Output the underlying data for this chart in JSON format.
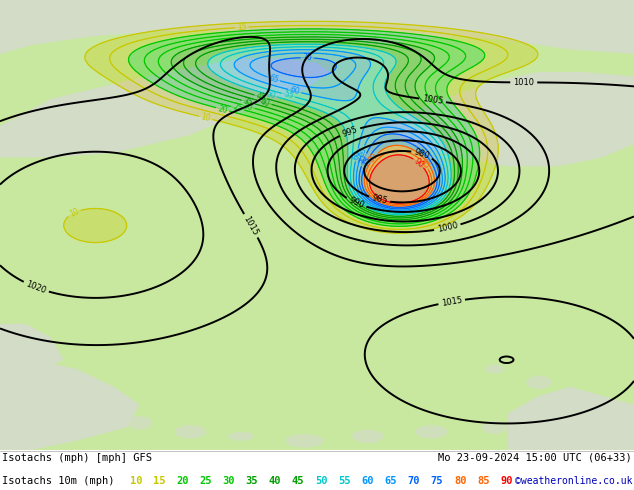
{
  "title_left": "Isotachs (mph) [mph] GFS",
  "title_right": "Mo 23-09-2024 15:00 UTC (06+33)",
  "subtitle_left": "Isotachs 10m (mph)",
  "copyright": "©weatheronline.co.uk",
  "legend_values": [
    10,
    15,
    20,
    25,
    30,
    35,
    40,
    45,
    50,
    55,
    60,
    65,
    70,
    75,
    80,
    85,
    90
  ],
  "legend_colors": [
    "#c8c800",
    "#c8c800",
    "#00c800",
    "#00c800",
    "#00c800",
    "#00a000",
    "#00a000",
    "#00a000",
    "#00c8c8",
    "#00c8c8",
    "#0096ff",
    "#0096ff",
    "#0064ff",
    "#0064ff",
    "#ff6400",
    "#ff6400",
    "#ff0000"
  ],
  "land_color": "#c8e8a0",
  "land_color2": "#b8e090",
  "sea_color": "#d8d8d8",
  "footer_bg": "#ffffff",
  "map_border": "#000000",
  "figsize": [
    6.34,
    4.9
  ],
  "dpi": 100,
  "isobar_color": "#000000",
  "isobar_lw": 1.4,
  "isotach_colors": {
    "10": "#c8c800",
    "15": "#c8c800",
    "20": "#00c800",
    "25": "#00c800",
    "30": "#00c800",
    "35": "#00a000",
    "40": "#00a000",
    "45": "#00a000",
    "50": "#00c8c8",
    "55": "#00c8c8",
    "60": "#0096ff",
    "65": "#0096ff",
    "70": "#0064ff",
    "75": "#0064ff",
    "80": "#ff6400",
    "85": "#ff6400",
    "90": "#ff0000"
  }
}
